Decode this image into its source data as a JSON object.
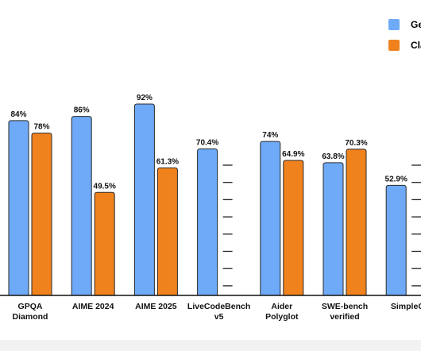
{
  "chart_data": {
    "type": "bar",
    "categories": [
      [
        "GPQA",
        "Diamond"
      ],
      [
        "AIME 2024"
      ],
      [
        "AIME 2025"
      ],
      [
        "LiveCodeBench",
        "v5"
      ],
      [
        "Aider",
        "Polyglot"
      ],
      [
        "SWE-bench",
        "verified"
      ],
      [
        "SimpleQ"
      ]
    ],
    "series": [
      {
        "name": "Ge",
        "color": "#6eaaf7",
        "values": [
          84,
          86,
          92,
          70.4,
          74,
          63.8,
          52.9
        ],
        "labels": [
          "84%",
          "86%",
          "92%",
          "70.4%",
          "74%",
          "63.8%",
          "52.9%"
        ]
      },
      {
        "name": "Cla",
        "color": "#f0821e",
        "values": [
          78,
          49.5,
          61.3,
          null,
          64.9,
          70.3,
          null
        ],
        "labels": [
          "78%",
          "49.5%",
          "61.3%",
          "",
          "64.9%",
          "70.3%",
          ""
        ]
      }
    ],
    "ylim": [
      0,
      100
    ],
    "grid": false,
    "legend_position": "top-right",
    "title": "",
    "xlabel": "",
    "ylabel": ""
  }
}
